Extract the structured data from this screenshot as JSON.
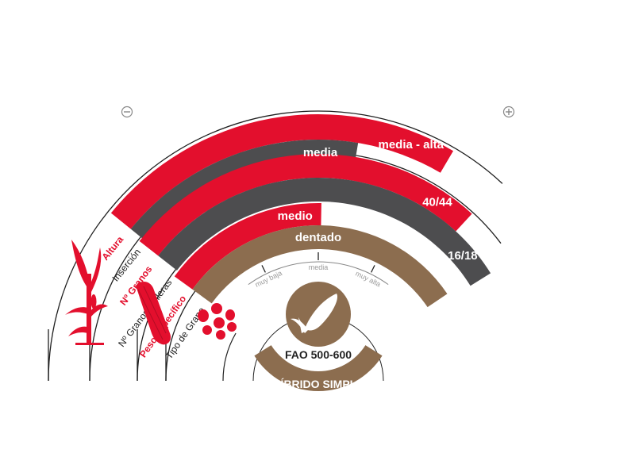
{
  "colors": {
    "red": "#e30f2d",
    "gray": "#4d4d4f",
    "brown": "#8c6d4f",
    "line": "#1f1f1f",
    "lightgray": "#9a9a9a"
  },
  "scale": {
    "minus_icon": "minus-icon",
    "plus_icon": "plus-icon",
    "labels": [
      "muy baja",
      "media",
      "muy alta"
    ]
  },
  "traits": [
    {
      "name": "Altura",
      "value": "media - alta",
      "level": 0.74,
      "color": "red",
      "label_color": "red"
    },
    {
      "name": "Inserción",
      "value": "media",
      "level": 0.55,
      "color": "gray",
      "label_color": "dark"
    },
    {
      "name": "Nº Granos",
      "value": "40/44",
      "level": 0.86,
      "color": "red",
      "label_color": "red"
    },
    {
      "name": "Nº Granos / Hileras",
      "value": "16/18",
      "level": 1.0,
      "color": "gray",
      "label_color": "dark"
    },
    {
      "name": "Peso Específico",
      "value": "medio",
      "level": 0.5,
      "color": "red",
      "label_color": "red"
    },
    {
      "name": "Tipo de Grano",
      "value": "dentado",
      "level": 1.0,
      "color": "brown",
      "label_color": "dark"
    }
  ],
  "icons": {
    "plant": "corn-plant-icon",
    "cob": "corn-cob-icon",
    "grains": "grains-icon",
    "center": "corn-cob-icon"
  },
  "fao": "FAO 500-600",
  "hybrid": "HÍBRIDO SIMPLE"
}
